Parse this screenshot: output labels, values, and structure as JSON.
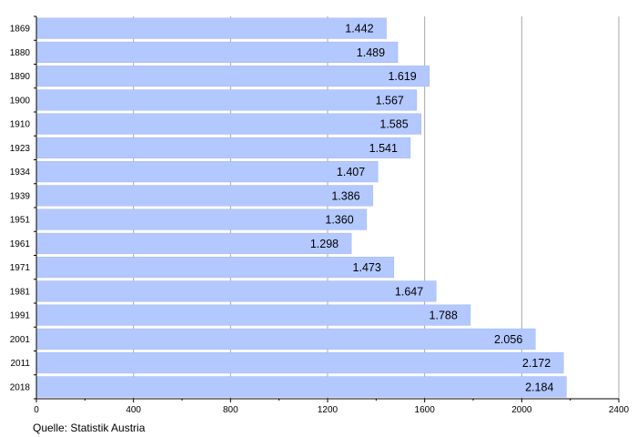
{
  "chart_data": {
    "type": "bar",
    "orientation": "horizontal",
    "categories": [
      "1869",
      "1880",
      "1890",
      "1900",
      "1910",
      "1923",
      "1934",
      "1939",
      "1951",
      "1961",
      "1971",
      "1981",
      "1991",
      "2001",
      "2011",
      "2018"
    ],
    "values": [
      1442,
      1489,
      1619,
      1567,
      1585,
      1541,
      1407,
      1386,
      1360,
      1298,
      1473,
      1647,
      1788,
      2056,
      2172,
      2184
    ],
    "value_labels": [
      "1.442",
      "1.489",
      "1.619",
      "1.567",
      "1.585",
      "1.541",
      "1.407",
      "1.386",
      "1.360",
      "1.298",
      "1.473",
      "1.647",
      "1.788",
      "2.056",
      "2.172",
      "2.184"
    ],
    "xlim": [
      0,
      2400
    ],
    "x_ticks": [
      0,
      400,
      800,
      1200,
      1600,
      2000,
      2400
    ],
    "x_tick_labels": [
      "0",
      "400",
      "800",
      "1200",
      "1600",
      "2000",
      "2400"
    ],
    "grid": true,
    "bar_color": "#b3c8ff",
    "bar_edge_color": "#9fb5ee",
    "grid_color": "#a8a8a8",
    "title": "",
    "xlabel": "",
    "ylabel": ""
  },
  "source": "Quelle: Statistik Austria"
}
